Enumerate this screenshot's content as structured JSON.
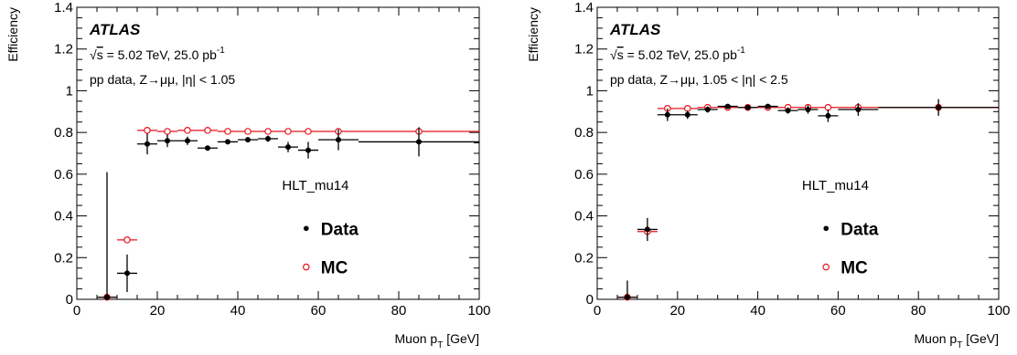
{
  "chart_data": [
    {
      "type": "scatter",
      "xlabel_main": "Muon p",
      "xlabel_sub": "T",
      "xlabel_unit": " [GeV]",
      "ylabel": "Efficiency",
      "xlim": [
        0,
        100
      ],
      "ylim": [
        0,
        1.4
      ],
      "x_ticks": [
        "0",
        "20",
        "40",
        "60",
        "80",
        "100"
      ],
      "y_ticks": [
        "0",
        "0.2",
        "0.4",
        "0.6",
        "0.8",
        "1",
        "1.2",
        "1.4"
      ],
      "annotations": {
        "experiment": "ATLAS",
        "sqrt_s": "s",
        "energy_lumi": " = 5.02 TeV, 25.0 pb",
        "lumi_exp": "-1",
        "selection_prefix": "pp data, Z",
        "selection_suffix": "μμ, |η| < 1.05",
        "trigger": "HLT_mu14"
      },
      "legend": {
        "placement": "right",
        "data_label": "Data",
        "mc_label": "MC"
      },
      "series": [
        {
          "name": "Data",
          "color": "#000000",
          "points": [
            {
              "x": 7.5,
              "xlo": 5,
              "xhi": 10,
              "y": 0.01,
              "err": 0.6
            },
            {
              "x": 12.5,
              "xlo": 10,
              "xhi": 15,
              "y": 0.125,
              "err": 0.09
            },
            {
              "x": 17.5,
              "xlo": 15,
              "xhi": 20,
              "y": 0.745,
              "err": 0.05
            },
            {
              "x": 22.5,
              "xlo": 20,
              "xhi": 25,
              "y": 0.76,
              "err": 0.03
            },
            {
              "x": 27.5,
              "xlo": 25,
              "xhi": 30,
              "y": 0.76,
              "err": 0.02
            },
            {
              "x": 32.5,
              "xlo": 30,
              "xhi": 35,
              "y": 0.725,
              "err": 0.01
            },
            {
              "x": 37.5,
              "xlo": 35,
              "xhi": 40,
              "y": 0.755,
              "err": 0.01
            },
            {
              "x": 42.5,
              "xlo": 40,
              "xhi": 45,
              "y": 0.765,
              "err": 0.01
            },
            {
              "x": 47.5,
              "xlo": 45,
              "xhi": 50,
              "y": 0.77,
              "err": 0.015
            },
            {
              "x": 52.5,
              "xlo": 50,
              "xhi": 55,
              "y": 0.73,
              "err": 0.025
            },
            {
              "x": 57.5,
              "xlo": 55,
              "xhi": 60,
              "y": 0.715,
              "err": 0.04
            },
            {
              "x": 65,
              "xlo": 60,
              "xhi": 70,
              "y": 0.765,
              "err": 0.05
            },
            {
              "x": 85,
              "xlo": 70,
              "xhi": 100,
              "y": 0.755,
              "err": 0.07
            }
          ]
        },
        {
          "name": "MC",
          "color": "#e8141e",
          "points": [
            {
              "x": 7.5,
              "xlo": 5,
              "xhi": 10,
              "y": 0.01
            },
            {
              "x": 12.5,
              "xlo": 10,
              "xhi": 15,
              "y": 0.285
            },
            {
              "x": 17.5,
              "xlo": 15,
              "xhi": 20,
              "y": 0.81
            },
            {
              "x": 22.5,
              "xlo": 20,
              "xhi": 25,
              "y": 0.805
            },
            {
              "x": 27.5,
              "xlo": 25,
              "xhi": 30,
              "y": 0.81
            },
            {
              "x": 32.5,
              "xlo": 30,
              "xhi": 35,
              "y": 0.81
            },
            {
              "x": 37.5,
              "xlo": 35,
              "xhi": 40,
              "y": 0.805
            },
            {
              "x": 42.5,
              "xlo": 40,
              "xhi": 45,
              "y": 0.805
            },
            {
              "x": 47.5,
              "xlo": 45,
              "xhi": 50,
              "y": 0.805
            },
            {
              "x": 52.5,
              "xlo": 50,
              "xhi": 55,
              "y": 0.805
            },
            {
              "x": 57.5,
              "xlo": 55,
              "xhi": 60,
              "y": 0.805
            },
            {
              "x": 65,
              "xlo": 60,
              "xhi": 70,
              "y": 0.805
            },
            {
              "x": 85,
              "xlo": 70,
              "xhi": 100,
              "y": 0.805
            }
          ]
        }
      ]
    },
    {
      "type": "scatter",
      "xlabel_main": "Muon p",
      "xlabel_sub": "T",
      "xlabel_unit": " [GeV]",
      "ylabel": "Efficiency",
      "xlim": [
        0,
        100
      ],
      "ylim": [
        0,
        1.4
      ],
      "x_ticks": [
        "0",
        "20",
        "40",
        "60",
        "80",
        "100"
      ],
      "y_ticks": [
        "0",
        "0.2",
        "0.4",
        "0.6",
        "0.8",
        "1",
        "1.2",
        "1.4"
      ],
      "annotations": {
        "experiment": "ATLAS",
        "sqrt_s": "s",
        "energy_lumi": " = 5.02 TeV, 25.0 pb",
        "lumi_exp": "-1",
        "selection_prefix": "pp data, Z",
        "selection_suffix": "μμ, 1.05 < |η| < 2.5",
        "trigger": "HLT_mu14"
      },
      "legend": {
        "placement": "right",
        "data_label": "Data",
        "mc_label": "MC"
      },
      "series": [
        {
          "name": "Data",
          "color": "#000000",
          "points": [
            {
              "x": 7.5,
              "xlo": 5,
              "xhi": 10,
              "y": 0.01,
              "err": 0.08
            },
            {
              "x": 12.5,
              "xlo": 10,
              "xhi": 15,
              "y": 0.335,
              "err": 0.055
            },
            {
              "x": 17.5,
              "xlo": 15,
              "xhi": 20,
              "y": 0.885,
              "err": 0.03
            },
            {
              "x": 22.5,
              "xlo": 20,
              "xhi": 25,
              "y": 0.885,
              "err": 0.02
            },
            {
              "x": 27.5,
              "xlo": 25,
              "xhi": 30,
              "y": 0.91,
              "err": 0.015
            },
            {
              "x": 32.5,
              "xlo": 30,
              "xhi": 35,
              "y": 0.925,
              "err": 0.01
            },
            {
              "x": 37.5,
              "xlo": 35,
              "xhi": 40,
              "y": 0.92,
              "err": 0.01
            },
            {
              "x": 42.5,
              "xlo": 40,
              "xhi": 45,
              "y": 0.925,
              "err": 0.01
            },
            {
              "x": 47.5,
              "xlo": 45,
              "xhi": 50,
              "y": 0.905,
              "err": 0.015
            },
            {
              "x": 52.5,
              "xlo": 50,
              "xhi": 55,
              "y": 0.91,
              "err": 0.02
            },
            {
              "x": 57.5,
              "xlo": 55,
              "xhi": 60,
              "y": 0.88,
              "err": 0.03
            },
            {
              "x": 65,
              "xlo": 60,
              "xhi": 70,
              "y": 0.91,
              "err": 0.03
            },
            {
              "x": 85,
              "xlo": 70,
              "xhi": 100,
              "y": 0.92,
              "err": 0.04
            }
          ]
        },
        {
          "name": "MC",
          "color": "#e8141e",
          "points": [
            {
              "x": 7.5,
              "xlo": 5,
              "xhi": 10,
              "y": 0.01
            },
            {
              "x": 12.5,
              "xlo": 10,
              "xhi": 15,
              "y": 0.325
            },
            {
              "x": 17.5,
              "xlo": 15,
              "xhi": 20,
              "y": 0.915
            },
            {
              "x": 22.5,
              "xlo": 20,
              "xhi": 25,
              "y": 0.915
            },
            {
              "x": 27.5,
              "xlo": 25,
              "xhi": 30,
              "y": 0.92
            },
            {
              "x": 32.5,
              "xlo": 30,
              "xhi": 35,
              "y": 0.92
            },
            {
              "x": 37.5,
              "xlo": 35,
              "xhi": 40,
              "y": 0.92
            },
            {
              "x": 42.5,
              "xlo": 40,
              "xhi": 45,
              "y": 0.92
            },
            {
              "x": 47.5,
              "xlo": 45,
              "xhi": 50,
              "y": 0.92
            },
            {
              "x": 52.5,
              "xlo": 50,
              "xhi": 55,
              "y": 0.92
            },
            {
              "x": 57.5,
              "xlo": 55,
              "xhi": 60,
              "y": 0.92
            },
            {
              "x": 65,
              "xlo": 60,
              "xhi": 70,
              "y": 0.92
            },
            {
              "x": 85,
              "xlo": 70,
              "xhi": 100,
              "y": 0.92
            }
          ]
        }
      ]
    }
  ]
}
